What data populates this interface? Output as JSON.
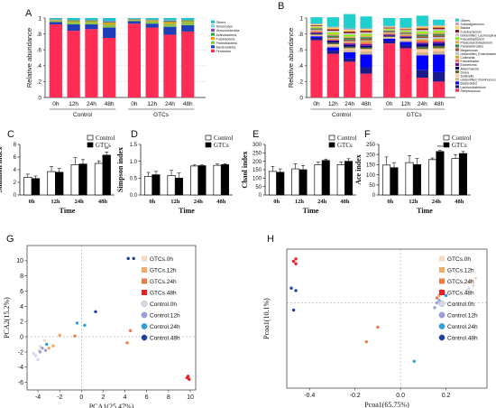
{
  "chart_data": [
    {
      "panel": "A",
      "type": "bar",
      "stacked": true,
      "ylabel": "Relative abundance",
      "ylim": [
        0,
        1
      ],
      "yticks": [
        "0",
        ".2",
        ".4",
        ".6",
        ".8",
        "1"
      ],
      "categories": [
        "0h",
        "12h",
        "24h",
        "48h",
        "0h",
        "12h",
        "24h",
        "48h"
      ],
      "groups": [
        {
          "label": "Control",
          "span": [
            0,
            3
          ]
        },
        {
          "label": "GTCs",
          "span": [
            4,
            7
          ]
        }
      ],
      "legend": [
        "Others",
        "Tenericutes",
        "Verrucomicrobia",
        "Actinobacteria",
        "Fusobacteria",
        "Proteobacteria",
        "Bacteroidetes",
        "Firmicutes"
      ],
      "legend_placement": "right",
      "colors": [
        "#1fc2c8",
        "#86c8e8",
        "#7b52a6",
        "#28a745",
        "#ff9800",
        "#8bc34a",
        "#1e3fb8",
        "#ff2d55"
      ],
      "series_bottom_to_top": [
        "Firmicutes",
        "Bacteroidetes",
        "Proteobacteria",
        "Fusobacteria",
        "Actinobacteria",
        "Verrucomicrobia",
        "Tenericutes",
        "Others"
      ],
      "values": [
        [
          0.92,
          0.03,
          0.02,
          0.005,
          0.005,
          0.005,
          0.0,
          0.015
        ],
        [
          0.84,
          0.08,
          0.03,
          0.01,
          0.01,
          0.005,
          0.0,
          0.025
        ],
        [
          0.86,
          0.06,
          0.03,
          0.01,
          0.01,
          0.005,
          0.0,
          0.025
        ],
        [
          0.75,
          0.13,
          0.04,
          0.02,
          0.01,
          0.01,
          0.005,
          0.035
        ],
        [
          0.93,
          0.03,
          0.015,
          0.005,
          0.005,
          0.005,
          0.0,
          0.01
        ],
        [
          0.88,
          0.05,
          0.03,
          0.01,
          0.005,
          0.005,
          0.0,
          0.02
        ],
        [
          0.79,
          0.1,
          0.04,
          0.02,
          0.01,
          0.01,
          0.005,
          0.025
        ],
        [
          0.83,
          0.08,
          0.04,
          0.01,
          0.01,
          0.005,
          0.0,
          0.025
        ]
      ]
    },
    {
      "panel": "B",
      "type": "bar",
      "stacked": true,
      "ylabel": "Relative abundance",
      "ylim": [
        0,
        1
      ],
      "yticks": [
        "0",
        ".2",
        ".4",
        ".6",
        ".8",
        "1"
      ],
      "categories": [
        "0h",
        "12h",
        "24h",
        "48h",
        "0h",
        "12h",
        "24h",
        "48h"
      ],
      "groups": [
        {
          "label": "Control",
          "span": [
            0,
            3
          ]
        },
        {
          "label": "GTCs",
          "span": [
            4,
            7
          ]
        }
      ],
      "legend": [
        "Others",
        "Subdoligranulum",
        "Blautia",
        "Fusobacterium",
        "unidentified_Lachnospiraceae",
        "Faecalibacterium",
        "Phascolarctobacterium",
        "Parabacteroides",
        "Megamonas",
        "unidentified_Enterobacteriaceae",
        "Collinsella",
        "Faecalibacter",
        "Escherichia",
        "Akkermansia",
        "Dorea",
        "Sutterella",
        "unidentified_Ruminococcaceae",
        "Bacteroides",
        "Lachnoclostridium",
        "Streptococcus"
      ],
      "legend_placement": "right",
      "colors": [
        "#1fd0cc",
        "#c8a2c8",
        "#ffd54f",
        "#8b1a1a",
        "#d8bfd8",
        "#7cfc00",
        "#e6a85a",
        "#2e8b57",
        "#a0522d",
        "#b0c4de",
        "#daa520",
        "#ff6347",
        "#6a0dad",
        "#000080",
        "#556b2f",
        "#ffcc99",
        "#d2b48c",
        "#0000ff",
        "#1a1a8c",
        "#ff2d55"
      ],
      "stack_order_bottom_to_top": [
        "Streptococcus",
        "Lachnoclostridium",
        "Bacteroides",
        "unidentified_Ruminococcaceae",
        "Sutterella",
        "Dorea",
        "Akkermansia",
        "Escherichia",
        "Faecalibacter",
        "Collinsella",
        "unidentified_Enterobacteriaceae",
        "Megamonas",
        "Parabacteroides",
        "Phascolarctobacterium",
        "Faecalibacterium",
        "unidentified_Lachnospiraceae",
        "Fusobacterium",
        "Blautia",
        "Subdoligranulum",
        "Others"
      ],
      "values": [
        [
          0.72,
          0.03,
          0.02,
          0.01,
          0.01,
          0.01,
          0.01,
          0.01,
          0.01,
          0.01,
          0.01,
          0.01,
          0.01,
          0.01,
          0.01,
          0.01,
          0.01,
          0.01,
          0.01,
          0.08
        ],
        [
          0.55,
          0.04,
          0.04,
          0.02,
          0.02,
          0.02,
          0.02,
          0.01,
          0.01,
          0.01,
          0.01,
          0.01,
          0.02,
          0.02,
          0.02,
          0.02,
          0.02,
          0.02,
          0.01,
          0.12
        ],
        [
          0.45,
          0.04,
          0.08,
          0.03,
          0.02,
          0.02,
          0.02,
          0.02,
          0.01,
          0.01,
          0.01,
          0.02,
          0.02,
          0.02,
          0.02,
          0.02,
          0.02,
          0.02,
          0.02,
          0.18
        ],
        [
          0.3,
          0.08,
          0.16,
          0.04,
          0.03,
          0.02,
          0.02,
          0.02,
          0.02,
          0.02,
          0.01,
          0.02,
          0.02,
          0.02,
          0.02,
          0.02,
          0.02,
          0.02,
          0.01,
          0.15
        ],
        [
          0.68,
          0.03,
          0.03,
          0.01,
          0.01,
          0.01,
          0.01,
          0.01,
          0.01,
          0.01,
          0.01,
          0.01,
          0.01,
          0.01,
          0.01,
          0.01,
          0.01,
          0.01,
          0.01,
          0.1
        ],
        [
          0.62,
          0.04,
          0.04,
          0.02,
          0.02,
          0.01,
          0.01,
          0.01,
          0.01,
          0.01,
          0.01,
          0.01,
          0.01,
          0.01,
          0.01,
          0.01,
          0.01,
          0.01,
          0.01,
          0.12
        ],
        [
          0.25,
          0.1,
          0.18,
          0.04,
          0.04,
          0.03,
          0.03,
          0.02,
          0.02,
          0.02,
          0.02,
          0.02,
          0.02,
          0.02,
          0.02,
          0.02,
          0.02,
          0.02,
          0.01,
          0.13
        ],
        [
          0.2,
          0.12,
          0.22,
          0.04,
          0.04,
          0.03,
          0.03,
          0.02,
          0.02,
          0.02,
          0.02,
          0.02,
          0.02,
          0.02,
          0.02,
          0.02,
          0.02,
          0.02,
          0.01,
          0.07
        ]
      ]
    },
    {
      "panel": "C",
      "type": "bar",
      "ylabel": "Shannon index",
      "xlabel": "Time",
      "ylim": [
        0,
        8
      ],
      "yticks": [
        "0",
        "2",
        "4",
        "6",
        "8"
      ],
      "categories": [
        "0h",
        "12h",
        "24h",
        "48h"
      ],
      "legend_placement": "top-right",
      "series": [
        {
          "name": "Control",
          "values": [
            2.8,
            3.7,
            4.8,
            5.0
          ],
          "errors": [
            0.5,
            0.8,
            1.1,
            0.4
          ],
          "color": "#ffffff"
        },
        {
          "name": "GTCs",
          "values": [
            2.6,
            3.6,
            4.9,
            6.3
          ],
          "errors": [
            0.4,
            0.6,
            0.7,
            0.5
          ],
          "color": "#000000"
        }
      ],
      "annotations": [
        "**"
      ]
    },
    {
      "panel": "D",
      "type": "bar",
      "ylabel": "Simpson index",
      "xlabel": "Time",
      "ylim": [
        0,
        1.5
      ],
      "yticks": [
        "0.0",
        "0.5",
        "1.0",
        "1.5"
      ],
      "categories": [
        "0h",
        "12h",
        "24h",
        "48h"
      ],
      "legend_placement": "top-right",
      "series": [
        {
          "name": "Control",
          "values": [
            0.55,
            0.58,
            0.86,
            0.88
          ],
          "errors": [
            0.12,
            0.15,
            0.03,
            0.04
          ],
          "color": "#ffffff"
        },
        {
          "name": "GTCs",
          "values": [
            0.6,
            0.5,
            0.87,
            0.9
          ],
          "errors": [
            0.1,
            0.15,
            0.02,
            0.03
          ],
          "color": "#000000"
        }
      ]
    },
    {
      "panel": "E",
      "type": "bar",
      "ylabel": "Chaol index",
      "xlabel": "Time",
      "ylim": [
        0,
        300
      ],
      "yticks": [
        "0",
        "50",
        "100",
        "150",
        "200",
        "250",
        "300"
      ],
      "categories": [
        "0h",
        "12h",
        "24h",
        "48h"
      ],
      "legend_placement": "top-right",
      "series": [
        {
          "name": "Control",
          "values": [
            140,
            155,
            180,
            180
          ],
          "errors": [
            30,
            30,
            15,
            15
          ],
          "color": "#ffffff"
        },
        {
          "name": "GTCs",
          "values": [
            135,
            150,
            205,
            200
          ],
          "errors": [
            20,
            25,
            8,
            15
          ],
          "color": "#000000"
        }
      ]
    },
    {
      "panel": "F",
      "type": "bar",
      "ylabel": "Ace index",
      "xlabel": "Time",
      "ylim": [
        0,
        250
      ],
      "yticks": [
        "0",
        "50",
        "100",
        "150",
        "200",
        "250"
      ],
      "categories": [
        "0h",
        "12h",
        "24h",
        "48h"
      ],
      "legend_placement": "top-right",
      "series": [
        {
          "name": "Control",
          "values": [
            148,
            160,
            175,
            180
          ],
          "errors": [
            40,
            35,
            8,
            20
          ],
          "color": "#ffffff"
        },
        {
          "name": "GTCs",
          "values": [
            135,
            150,
            215,
            205
          ],
          "errors": [
            25,
            30,
            5,
            10
          ],
          "color": "#000000"
        }
      ],
      "annotations": [
        "***"
      ]
    },
    {
      "panel": "G",
      "type": "scatter",
      "xlabel": "PCA1(25.47%)",
      "ylabel": "PCA2(15.2%)",
      "xlim": [
        -5,
        10.5
      ],
      "ylim": [
        -7,
        12
      ],
      "xticks": [
        -4,
        -2,
        0,
        2,
        4,
        6,
        8,
        10
      ],
      "yticks": [
        -6,
        -4,
        -2,
        0,
        2,
        4,
        6,
        8,
        10
      ],
      "grid": false,
      "legend_placement": "right",
      "series": [
        {
          "name": "GTCs.0h",
          "color": "#f7d9c4",
          "points": [
            [
              -3.8,
              -1.3
            ],
            [
              -3.4,
              -0.5
            ],
            [
              -3.9,
              -1.8
            ]
          ]
        },
        {
          "name": "GTCs.12h",
          "color": "#f5a863",
          "points": [
            [
              -2.6,
              -1.2
            ],
            [
              -2.0,
              0.2
            ],
            [
              -3.0,
              -1.5
            ]
          ]
        },
        {
          "name": "GTCs.24h",
          "color": "#ef7b45",
          "points": [
            [
              4.5,
              0.8
            ],
            [
              4.2,
              -0.8
            ],
            [
              -0.6,
              0.1
            ]
          ]
        },
        {
          "name": "GTCs.48h",
          "color": "#e8202a",
          "points": [
            [
              9.7,
              -5.4
            ],
            [
              9.9,
              -5.6
            ],
            [
              9.8,
              -5.2
            ]
          ]
        },
        {
          "name": "Control.0h",
          "color": "#d8d8ea",
          "points": [
            [
              -4.2,
              -2.5
            ],
            [
              -4.0,
              -3.0
            ],
            [
              -4.4,
              -2.2
            ]
          ]
        },
        {
          "name": "Control.12h",
          "color": "#9aa0d8",
          "points": [
            [
              -3.6,
              -1.5
            ],
            [
              -3.8,
              -2.0
            ],
            [
              -3.3,
              -1.8
            ]
          ]
        },
        {
          "name": "Control.24h",
          "color": "#29a3d8",
          "points": [
            [
              -0.4,
              1.8
            ],
            [
              0.3,
              1.5
            ],
            [
              -3.2,
              -1.0
            ]
          ]
        },
        {
          "name": "Control.48h",
          "color": "#1c3fa0",
          "points": [
            [
              4.3,
              10.3
            ],
            [
              4.8,
              10.3
            ],
            [
              1.3,
              3.3
            ]
          ]
        }
      ]
    },
    {
      "panel": "H",
      "type": "scatter",
      "xlabel": "Pcoa1(65.75%)",
      "ylabel": "Pcoa1(10.1%)",
      "xlim": [
        -0.5,
        0.38
      ],
      "ylim": [
        -0.35,
        0.22
      ],
      "xticks": [
        -0.4,
        -0.2,
        0.0,
        0.2
      ],
      "yticks": [],
      "grid": false,
      "legend_placement": "right",
      "series": [
        {
          "name": "GTCs.0h",
          "color": "#f7d9c4",
          "points": [
            [
              0.31,
              0.09
            ],
            [
              0.33,
              0.1
            ],
            [
              0.3,
              0.08
            ]
          ]
        },
        {
          "name": "GTCs.12h",
          "color": "#f5a863",
          "points": [
            [
              0.17,
              0.03
            ],
            [
              0.18,
              0.05
            ],
            [
              0.19,
              0.04
            ]
          ]
        },
        {
          "name": "GTCs.24h",
          "color": "#ef7b45",
          "points": [
            [
              -0.1,
              -0.1
            ],
            [
              -0.15,
              -0.16
            ],
            [
              0.16,
              0.02
            ]
          ]
        },
        {
          "name": "GTCs.48h",
          "color": "#e8202a",
          "points": [
            [
              -0.46,
              0.18
            ],
            [
              -0.47,
              0.17
            ],
            [
              -0.46,
              0.16
            ]
          ]
        },
        {
          "name": "Control.0h",
          "color": "#d8d8ea",
          "points": [
            [
              0.3,
              0.06
            ],
            [
              0.32,
              0.07
            ],
            [
              0.29,
              0.05
            ]
          ]
        },
        {
          "name": "Control.12h",
          "color": "#9aa0d8",
          "points": [
            [
              0.15,
              -0.02
            ],
            [
              0.17,
              0.01
            ],
            [
              0.16,
              0.0
            ]
          ]
        },
        {
          "name": "Control.24h",
          "color": "#29a3d8",
          "points": [
            [
              0.06,
              -0.24
            ],
            [
              0.18,
              0.04
            ],
            [
              0.2,
              0.03
            ]
          ]
        },
        {
          "name": "Control.48h",
          "color": "#1c3fa0",
          "points": [
            [
              -0.48,
              0.06
            ],
            [
              -0.47,
              -0.03
            ],
            [
              -0.46,
              0.05
            ]
          ]
        }
      ]
    }
  ],
  "panel_labels": [
    "A",
    "B",
    "C",
    "D",
    "E",
    "F",
    "G",
    "H"
  ]
}
